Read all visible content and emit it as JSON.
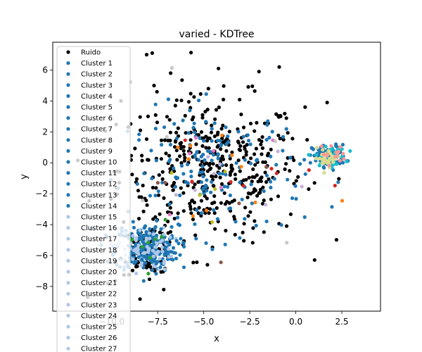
{
  "chart_data": {
    "type": "scatter",
    "title": "varied - KDTree",
    "xlabel": "x",
    "ylabel": "y",
    "xlim": [
      -13.2,
      4.6
    ],
    "ylim": [
      -9.6,
      7.8
    ],
    "xticks": [
      -10.0,
      -7.5,
      -5.0,
      -2.5,
      0.0,
      2.5
    ],
    "xtick_labels": [
      "−10.0",
      "−7.5",
      "−5.0",
      "−2.5",
      "0.0",
      "2.5"
    ],
    "yticks": [
      -8,
      -6,
      -4,
      -2,
      0,
      2,
      4,
      6
    ],
    "ytick_labels": [
      "−8",
      "−6",
      "−4",
      "−2",
      "0",
      "2",
      "4",
      "6"
    ],
    "legend_position": "upper-left",
    "legend": [
      {
        "label": "Ruido",
        "color": "#000000"
      },
      {
        "label": "Cluster 1",
        "color": "#1f77b4"
      },
      {
        "label": "Cluster 2",
        "color": "#1f77b4"
      },
      {
        "label": "Cluster 3",
        "color": "#1f77b4"
      },
      {
        "label": "Cluster 4",
        "color": "#1f77b4"
      },
      {
        "label": "Cluster 5",
        "color": "#1f77b4"
      },
      {
        "label": "Cluster 6",
        "color": "#1f77b4"
      },
      {
        "label": "Cluster 7",
        "color": "#1f77b4"
      },
      {
        "label": "Cluster 8",
        "color": "#1f77b4"
      },
      {
        "label": "Cluster 9",
        "color": "#1f77b4"
      },
      {
        "label": "Cluster 10",
        "color": "#1f77b4"
      },
      {
        "label": "Cluster 11",
        "color": "#1f77b4"
      },
      {
        "label": "Cluster 12",
        "color": "#1f77b4"
      },
      {
        "label": "Cluster 13",
        "color": "#1f77b4"
      },
      {
        "label": "Cluster 14",
        "color": "#1f77b4"
      },
      {
        "label": "Cluster 15",
        "color": "#aec7e8"
      },
      {
        "label": "Cluster 16",
        "color": "#aec7e8"
      },
      {
        "label": "Cluster 17",
        "color": "#aec7e8"
      },
      {
        "label": "Cluster 18",
        "color": "#aec7e8"
      },
      {
        "label": "Cluster 19",
        "color": "#aec7e8"
      },
      {
        "label": "Cluster 20",
        "color": "#aec7e8"
      },
      {
        "label": "Cluster 21",
        "color": "#aec7e8"
      },
      {
        "label": "Cluster 22",
        "color": "#aec7e8"
      },
      {
        "label": "Cluster 23",
        "color": "#aec7e8"
      },
      {
        "label": "Cluster 24",
        "color": "#aec7e8"
      },
      {
        "label": "Cluster 25",
        "color": "#aec7e8"
      },
      {
        "label": "Cluster 26",
        "color": "#aec7e8"
      },
      {
        "label": "Cluster 27",
        "color": "#aec7e8"
      }
    ],
    "groups": [
      {
        "color": "#1f77b4",
        "center": [
          -8.1,
          -5.5
        ],
        "spread": [
          0.85,
          0.75
        ],
        "count": 240
      },
      {
        "color": "#aec7e8",
        "center": [
          -8.3,
          -5.6
        ],
        "spread": [
          0.8,
          0.7
        ],
        "count": 70
      },
      {
        "color": "#1f77b4",
        "center": [
          1.8,
          0.45
        ],
        "spread": [
          0.45,
          0.35
        ],
        "count": 110
      },
      {
        "color": "#17becf",
        "center": [
          1.9,
          0.4
        ],
        "spread": [
          0.4,
          0.3
        ],
        "count": 40
      },
      {
        "color": "#dbdb8d",
        "center": [
          1.7,
          0.3
        ],
        "spread": [
          0.35,
          0.3
        ],
        "count": 30
      },
      {
        "color": "#ff9896",
        "center": [
          2.0,
          0.6
        ],
        "spread": [
          0.35,
          0.3
        ],
        "count": 15
      },
      {
        "color": "#1f77b4",
        "center": [
          -4.3,
          -0.6
        ],
        "spread": [
          2.4,
          2.1
        ],
        "count": 170
      },
      {
        "color": "#ff7f0e",
        "center": [
          -4.0,
          -1.0
        ],
        "spread": [
          2.4,
          2.0
        ],
        "count": 10
      },
      {
        "color": "#d62728",
        "center": [
          -3.5,
          -0.8
        ],
        "spread": [
          2.4,
          2.0
        ],
        "count": 8
      },
      {
        "color": "#2ca02c",
        "center": [
          -8.0,
          -5.5
        ],
        "spread": [
          0.8,
          0.7
        ],
        "count": 8
      },
      {
        "color": "#e377c2",
        "center": [
          -4.0,
          -0.5
        ],
        "spread": [
          2.4,
          2.0
        ],
        "count": 6
      },
      {
        "color": "#c5b0d5",
        "center": [
          -4.0,
          0.0
        ],
        "spread": [
          2.6,
          2.2
        ],
        "count": 8
      },
      {
        "color": "#8c564b",
        "center": [
          -5.0,
          -1.0
        ],
        "spread": [
          2.5,
          2.2
        ],
        "count": 5
      },
      {
        "color": "#bcbd22",
        "center": [
          -4.0,
          -1.0
        ],
        "spread": [
          2.4,
          2.0
        ],
        "count": 5
      },
      {
        "color": "#c7c7c7",
        "center": [
          -5.5,
          -2.0
        ],
        "spread": [
          3.0,
          3.0
        ],
        "count": 6
      }
    ],
    "noise": {
      "color": "#000000",
      "center_points": [
        [
          -4.6,
          -0.4
        ],
        [
          -8.0,
          -5.6
        ]
      ],
      "spreads": [
        [
          2.5,
          2.3
        ],
        [
          0.8,
          0.8
        ]
      ],
      "counts": [
        420,
        110
      ]
    },
    "outlier_points": [
      [
        -7.8,
        7.1
      ],
      [
        -8.1,
        7.0
      ],
      [
        -0.9,
        6.2
      ],
      [
        -4.2,
        6.1
      ],
      [
        -2.0,
        5.9
      ],
      [
        -6.8,
        5.8
      ],
      [
        -7.7,
        5.0
      ],
      [
        -9.5,
        4.0
      ],
      [
        1.7,
        3.9
      ],
      [
        -4.8,
        -6.6
      ],
      [
        -11.3,
        -8.7
      ],
      [
        -10.2,
        -7.8
      ]
    ]
  }
}
